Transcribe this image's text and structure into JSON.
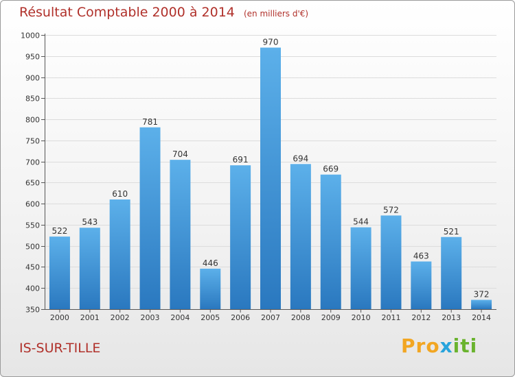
{
  "title": "Résultat Comptable 2000 à 2014",
  "unit": "(en milliers d'€)",
  "commune": "IS-SUR-TILLE",
  "logo": {
    "part1": "Pro",
    "part2": "x",
    "part3": "iti"
  },
  "colors": {
    "bar_top": "#5cb0ea",
    "bar_bottom": "#2a78bf",
    "title": "#b0302a"
  },
  "chart_data": {
    "type": "bar",
    "title": "Résultat Comptable 2000 à 2014",
    "ylabel": "en milliers d'€",
    "xlabel": "",
    "categories": [
      "2000",
      "2001",
      "2002",
      "2003",
      "2004",
      "2005",
      "2006",
      "2007",
      "2008",
      "2009",
      "2010",
      "2011",
      "2012",
      "2013",
      "2014"
    ],
    "values": [
      522,
      543,
      610,
      781,
      704,
      446,
      691,
      970,
      694,
      669,
      544,
      572,
      463,
      521,
      372
    ],
    "ylim": [
      350,
      1000
    ],
    "yticks": [
      350,
      400,
      450,
      500,
      550,
      600,
      650,
      700,
      750,
      800,
      850,
      900,
      950,
      1000
    ],
    "grid": true
  }
}
